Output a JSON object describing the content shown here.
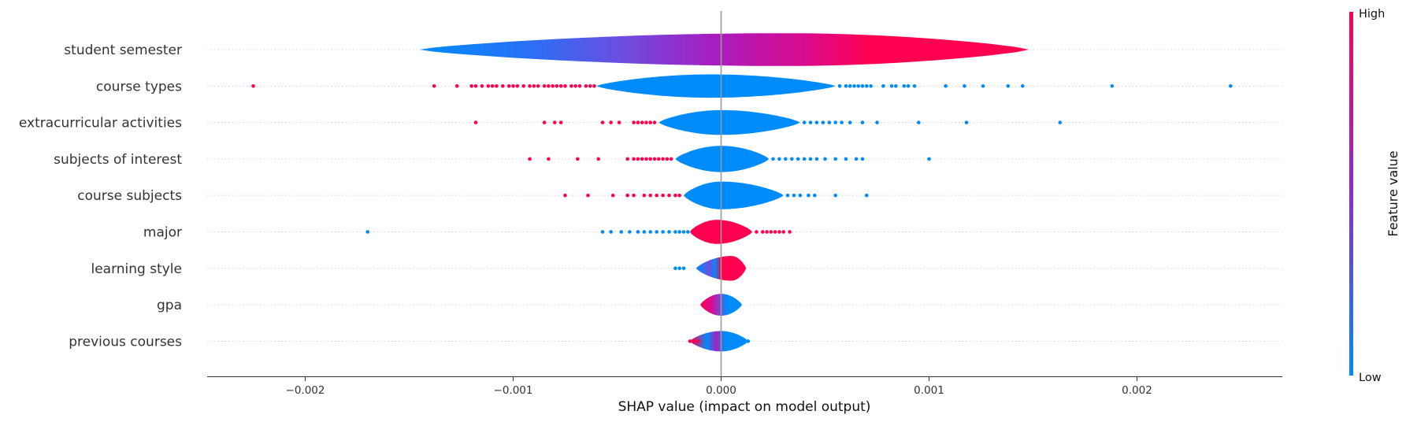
{
  "chart_data": {
    "type": "scatter",
    "subtype": "shap-violin-summary",
    "xlabel": "SHAP value (impact on model output)",
    "xticks": [
      -0.002,
      -0.001,
      0.0,
      0.001,
      0.002
    ],
    "xtick_labels": [
      "−0.002",
      "−0.001",
      "0.000",
      "0.001",
      "0.002"
    ],
    "xlim": [
      -0.0025,
      0.0027
    ],
    "colorbar": {
      "title": "Feature value",
      "high_label": "High",
      "low_label": "Low",
      "low_color": "#008bfb",
      "high_color": "#ff0051"
    },
    "features": [
      {
        "name": "student semester",
        "violin": {
          "min": -0.00145,
          "max": 0.00148,
          "max_halfwidth": 0.45,
          "peak": 0.0003,
          "color": "gradient-low-to-high"
        },
        "high_points": [],
        "low_points": []
      },
      {
        "name": "course types",
        "violin": {
          "min": -0.0006,
          "max": 0.00055,
          "max_halfwidth": 0.32,
          "peak": -5e-05,
          "color": "low"
        },
        "high_points": [
          -0.00225,
          -0.00138,
          -0.00127,
          -0.0012,
          -0.00118,
          -0.00115,
          -0.00112,
          -0.0011,
          -0.00108,
          -0.00105,
          -0.00102,
          -0.001,
          -0.00098,
          -0.00095,
          -0.00092,
          -0.0009,
          -0.00088,
          -0.00085,
          -0.00083,
          -0.00081,
          -0.00079,
          -0.00077,
          -0.00075,
          -0.00072,
          -0.0007,
          -0.00068,
          -0.00065,
          -0.00063,
          -0.00061
        ],
        "low_points": [
          0.00057,
          0.0006,
          0.00062,
          0.00064,
          0.00066,
          0.00068,
          0.0007,
          0.00072,
          0.00078,
          0.00082,
          0.00084,
          0.00088,
          0.0009,
          0.00093,
          0.00108,
          0.00117,
          0.00126,
          0.00138,
          0.00145,
          0.00188,
          0.00245
        ]
      },
      {
        "name": "extracurricular activities",
        "violin": {
          "min": -0.0003,
          "max": 0.00038,
          "max_halfwidth": 0.34,
          "peak": 0.0,
          "color": "low"
        },
        "high_points": [
          -0.00118,
          -0.00085,
          -0.0008,
          -0.00077,
          -0.00057,
          -0.00053,
          -0.00049,
          -0.00042,
          -0.0004,
          -0.00038,
          -0.00036,
          -0.00034,
          -0.00032
        ],
        "low_points": [
          0.0004,
          0.00043,
          0.00046,
          0.00049,
          0.00052,
          0.00055,
          0.00058,
          0.00062,
          0.00068,
          0.00075,
          0.00095,
          0.00118,
          0.00163
        ]
      },
      {
        "name": "subjects of interest",
        "violin": {
          "min": -0.00022,
          "max": 0.00023,
          "max_halfwidth": 0.36,
          "peak": 0.0,
          "color": "low"
        },
        "high_points": [
          -0.00092,
          -0.00083,
          -0.00069,
          -0.00059,
          -0.00045,
          -0.00042,
          -0.0004,
          -0.00038,
          -0.00036,
          -0.00034,
          -0.00032,
          -0.0003,
          -0.00028,
          -0.00026,
          -0.00024
        ],
        "low_points": [
          0.00025,
          0.00028,
          0.00031,
          0.00034,
          0.00037,
          0.0004,
          0.00043,
          0.00046,
          0.0005,
          0.00055,
          0.0006,
          0.00065,
          0.00068,
          0.001
        ]
      },
      {
        "name": "course subjects",
        "violin": {
          "min": -0.00018,
          "max": 0.0003,
          "max_halfwidth": 0.38,
          "peak": 0.0,
          "color": "low"
        },
        "high_points": [
          -0.00075,
          -0.00064,
          -0.00052,
          -0.00045,
          -0.00042,
          -0.00037,
          -0.00034,
          -0.00031,
          -0.00028,
          -0.00025,
          -0.00022,
          -0.0002
        ],
        "low_points": [
          0.00032,
          0.00035,
          0.00038,
          0.00042,
          0.00045,
          0.00055,
          0.0007
        ]
      },
      {
        "name": "major",
        "violin": {
          "min": -0.00015,
          "max": 0.00015,
          "max_halfwidth": 0.33,
          "peak": -2e-05,
          "color": "high"
        },
        "high_points": [
          0.00017,
          0.0002,
          0.00022,
          0.00024,
          0.00026,
          0.00028,
          0.0003,
          0.00033
        ],
        "low_points": [
          -0.0017,
          -0.00057,
          -0.00053,
          -0.00048,
          -0.00044,
          -0.0004,
          -0.00037,
          -0.00034,
          -0.00031,
          -0.00028,
          -0.00025,
          -0.00022,
          -0.0002,
          -0.00018,
          -0.00016
        ]
      },
      {
        "name": "learning style",
        "violin": {
          "min": -0.00012,
          "max": 0.00012,
          "max_halfwidth": 0.34,
          "peak": 5e-05,
          "color": "bimodal"
        },
        "high_points": [],
        "low_points": [
          -0.00022,
          -0.0002,
          -0.00018
        ]
      },
      {
        "name": "gpa",
        "violin": {
          "min": -0.0001,
          "max": 0.0001,
          "max_halfwidth": 0.3,
          "peak": 0.0,
          "color": "high-to-low"
        },
        "high_points": [],
        "low_points": []
      },
      {
        "name": "previous courses",
        "violin": {
          "min": -0.00015,
          "max": 0.00013,
          "max_halfwidth": 0.28,
          "peak": 0.0,
          "color": "mixed"
        },
        "high_points": [
          -0.00015,
          -0.00013,
          -0.00011
        ],
        "low_points": [
          0.0001,
          0.00013
        ]
      }
    ]
  }
}
